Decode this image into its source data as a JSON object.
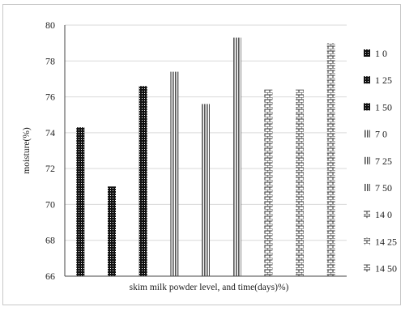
{
  "chart_data": {
    "type": "bar",
    "title": "",
    "xlabel": "skim milk powder level, and time(days)%)",
    "ylabel": "moisture(%)",
    "ylim": [
      66,
      80
    ],
    "yticks": [
      66,
      68,
      70,
      72,
      74,
      76,
      78,
      80
    ],
    "grid": true,
    "legend_position": "right",
    "categories": [
      "1 0",
      "1 25",
      "1 50",
      "7 0",
      "7 25",
      "7 50",
      "14 0",
      "14 25",
      "14 50"
    ],
    "values": [
      74.3,
      71.0,
      76.6,
      77.4,
      75.6,
      79.3,
      76.4,
      76.4,
      79.0
    ],
    "patterns": [
      "dots",
      "dots",
      "dots",
      "vstripes",
      "vstripes",
      "vstripes",
      "bricks",
      "bricks",
      "bricks"
    ],
    "colors": {
      "dots": "#111111",
      "stripes": "#555555",
      "bricks": "#333333",
      "grid": "#d9d9d9",
      "axis": "#444444"
    }
  }
}
